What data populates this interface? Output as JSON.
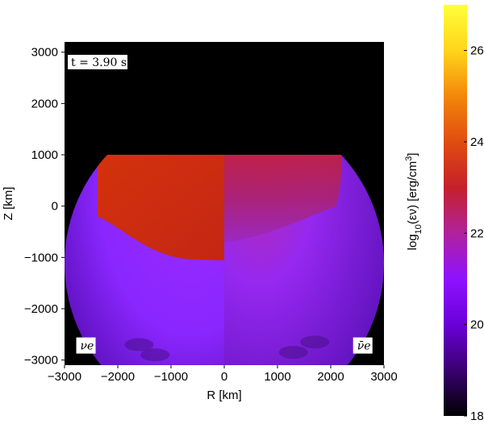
{
  "chart_data": {
    "type": "heatmap",
    "time_label": "t = 3.90 s",
    "xlabel": "R [km]",
    "ylabel": "Z [km]",
    "xlim": [
      -3000,
      3000
    ],
    "ylim": [
      -3100,
      3200
    ],
    "xticks": [
      "−3000",
      "−2000",
      "−1000",
      "0",
      "1000",
      "2000",
      "3000"
    ],
    "xtick_values": [
      -3000,
      -2000,
      -1000,
      0,
      1000,
      2000,
      3000
    ],
    "yticks": [
      "3000",
      "2000",
      "1000",
      "0",
      "−1000",
      "−2000",
      "−3000"
    ],
    "ytick_values": [
      3000,
      2000,
      1000,
      0,
      -1000,
      -2000,
      -3000
    ],
    "panel_labels": {
      "left": "νe",
      "right": "ν̄e"
    },
    "background_color": "#000000",
    "colorbar": {
      "label": "log10(εν) [erg/cm3]",
      "min": 18,
      "max": 27,
      "ticks": [
        "26",
        "24",
        "22",
        "20",
        "18"
      ],
      "tick_values": [
        26,
        24,
        22,
        20,
        18
      ],
      "colormap": "gnuplot",
      "stops": [
        "#000000",
        "#3a0070",
        "#6a00d8",
        "#8e12ff",
        "#b0229c",
        "#c5202a",
        "#e04c10",
        "#f3870a",
        "#ffd51a",
        "#ffff3a"
      ]
    },
    "regions": [
      {
        "name": "nu_e outer",
        "log_eps": 20.6,
        "color": "#8a28ff"
      },
      {
        "name": "nu_e inner",
        "log_eps": 23.0,
        "color": "#cc2d10"
      },
      {
        "name": "anti-nu_e outer",
        "log_eps": 21.0,
        "color": "#9a28e0"
      },
      {
        "name": "anti-nu_e inner",
        "log_eps": 22.6,
        "color": "#b5205a"
      }
    ]
  }
}
